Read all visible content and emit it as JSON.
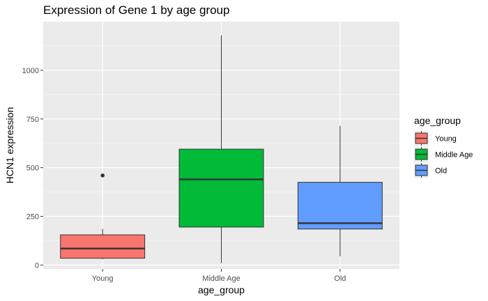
{
  "chart_data": {
    "type": "boxplot",
    "title": "Expression of Gene 1 by age group",
    "xlabel": "age_group",
    "ylabel": "HCN1 expression",
    "categories": [
      "Young",
      "Middle Age",
      "Old"
    ],
    "ylim": [
      -20,
      1250
    ],
    "yticks": [
      0,
      250,
      500,
      750,
      1000
    ],
    "grid": true,
    "legend": {
      "title": "age_group",
      "position": "right",
      "entries": [
        "Young",
        "Middle Age",
        "Old"
      ]
    },
    "boxes": [
      {
        "name": "Young",
        "min": 30,
        "q1": 35,
        "median": 85,
        "q3": 155,
        "max": 185,
        "outliers": [
          460
        ],
        "color": "#F8766D"
      },
      {
        "name": "Middle Age",
        "min": 10,
        "q1": 195,
        "median": 440,
        "q3": 595,
        "max": 1180,
        "outliers": [],
        "color": "#00BA38"
      },
      {
        "name": "Old",
        "min": 45,
        "q1": 185,
        "median": 215,
        "q3": 425,
        "max": 715,
        "outliers": [],
        "color": "#619CFF"
      }
    ]
  }
}
